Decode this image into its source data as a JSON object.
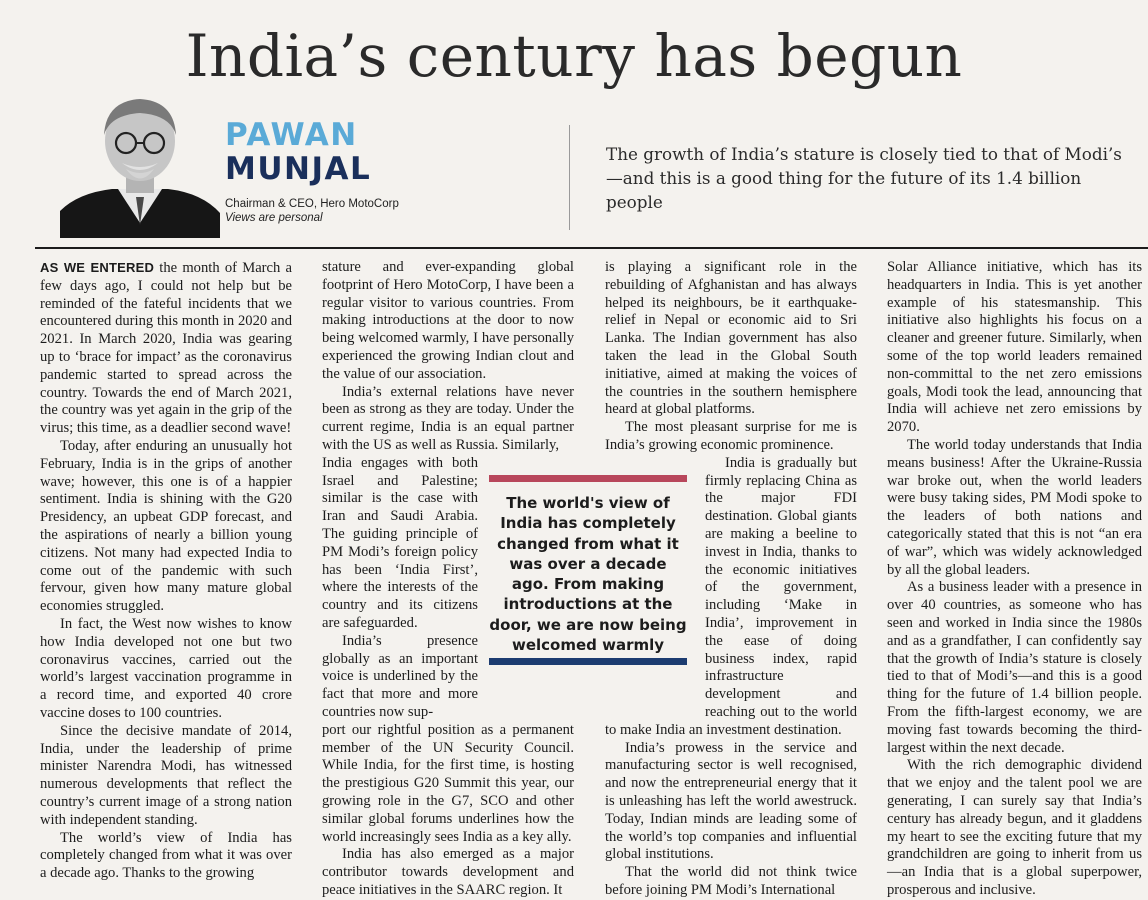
{
  "headline": "India’s century has begun",
  "author": {
    "first_name": "PAWAN",
    "last_name": "MUNJAL",
    "role": "Chairman & CEO, Hero MotoCorp",
    "note": "Views are personal"
  },
  "dek": "The growth of India’s stature is closely tied to that of Modi’s—and this is a good thing for the future of its 1.4 billion people",
  "pullquote": "The world's view of India has completely changed from what it was over a decade ago. From making introductions at the door, we are now being welcomed warmly",
  "colors": {
    "accent_blue": "#5aaad7",
    "navy": "#1a2f5b",
    "quote_red": "#b8475b",
    "quote_blue": "#1c3c70"
  },
  "article": {
    "lead_in": "AS WE ENTERED",
    "col1": [
      " the month of March a few days ago, I could not help but be reminded of the fateful incidents that we encountered during this month in 2020 and 2021. In March 2020, India was gearing up to ‘brace for impact’ as the coronavirus pandemic started to spread across the country. Towards the end of March 2021, the country was yet again in the grip of the virus; this time, as a deadlier second wave!",
      "Today, after enduring an unusually hot February, India is in the grips of another wave; however, this one is of a happier sentiment. India is shining with the G20 Presidency, an upbeat GDP forecast, and the aspirations of nearly a billion young citizens. Not many had expected India to come out of the pandemic with such fervour, given how many mature global economies struggled.",
      "In fact, the West now wishes to know how India developed not one but two coronavirus vaccines, carried out the world’s largest vaccination programme in a record time, and exported 40 crore vaccine doses to 100 countries.",
      "Since the decisive mandate of 2014, India, under the leadership of prime minister Narendra Modi, has witnessed numerous developments that reflect the country’s current image of a strong nation with independent standing.",
      "The world’s view of India has completely changed from what it was over a decade ago. Thanks to the growing"
    ],
    "col2": [
      "stature and ever-expanding global footprint of Hero MotoCorp, I have been a regular visitor to various countries. From making introductions at the door to now being welcomed warmly, I have personally experienced the growing Indian clout and the value of our association.",
      "India’s external relations have never been as strong as they are today. Under the current regime, India is an equal partner with the US as well as Russia. Similarly,",
      "India engages with both Israel and Palestine; similar is the case with Iran and Saudi Arabia. The guiding principle of PM Modi’s foreign policy has been ‘India First’, where the interests of the country and its citizens are safeguarded.",
      "India’s presence globally as an important voice is underlined by the fact that more and more countries now sup-",
      "port our rightful position as a permanent member of the UN Security Council. While India, for the first time, is hosting the prestigious G20 Summit this year, our growing role in the G7, SCO and other similar global forums underlines how the world increasingly sees India as a key ally.",
      "India has also emerged as a major contributor towards development and peace initiatives in the SAARC region. It"
    ],
    "col3": [
      "is playing a significant role in the rebuilding of Afghanistan and has always helped its neighbours, be it earthquake-relief in Nepal or economic aid to Sri Lanka. The Indian government has also taken the lead in the Global South initiative, aimed at making the voices of the countries in the southern hemisphere heard at global platforms.",
      "The most pleasant surprise for me is India’s growing economic prominence.",
      "India is gradually but firmly replacing China as the major FDI destination. Global giants are making a beeline to invest in India, thanks to the economic initiatives of the government, including ‘Make in India’, improvement in the ease of doing business index, rapid infrastructure development and reaching out to the world to make India an investment destination.",
      "India’s prowess in the service and manufacturing sector is well recognised, and now the entrepreneurial energy that it is unleashing has left the world awestruck. Today, Indian minds are leading some of the world’s top companies and influential global institutions.",
      "That the world did not think twice before joining PM Modi’s International"
    ],
    "col4": [
      "Solar Alliance initiative, which has its headquarters in India. This is yet another example of his statesmanship. This initiative also highlights his focus on a cleaner and greener future. Similarly, when some of the top world leaders remained non-committal to the net zero emissions goals, Modi took the lead, announcing that India will achieve net zero emissions by 2070.",
      "The world today understands that India means business! After the Ukraine-Russia war broke out, when the world leaders were busy taking sides, PM Modi spoke to the leaders of both nations and categorically stated that this is not “an era of war”, which was widely acknowledged by all the global leaders.",
      "As a business leader with a presence in over 40 countries, as someone who has seen and worked in India since the 1980s and as a grandfather, I can confidently say that the growth of India’s stature is closely tied to that of Modi’s—and this is a good thing for the future of 1.4 billion people. From the fifth-largest economy, we are moving fast towards becoming the third-largest within the next decade.",
      "With the rich demographic dividend that we enjoy and the talent pool we are generating, I can surely say that India’s century has already begun, and it gladdens my heart to see the exciting future that my grandchildren are going to inherit from us—an India that is a global superpower, prosperous and inclusive."
    ]
  }
}
